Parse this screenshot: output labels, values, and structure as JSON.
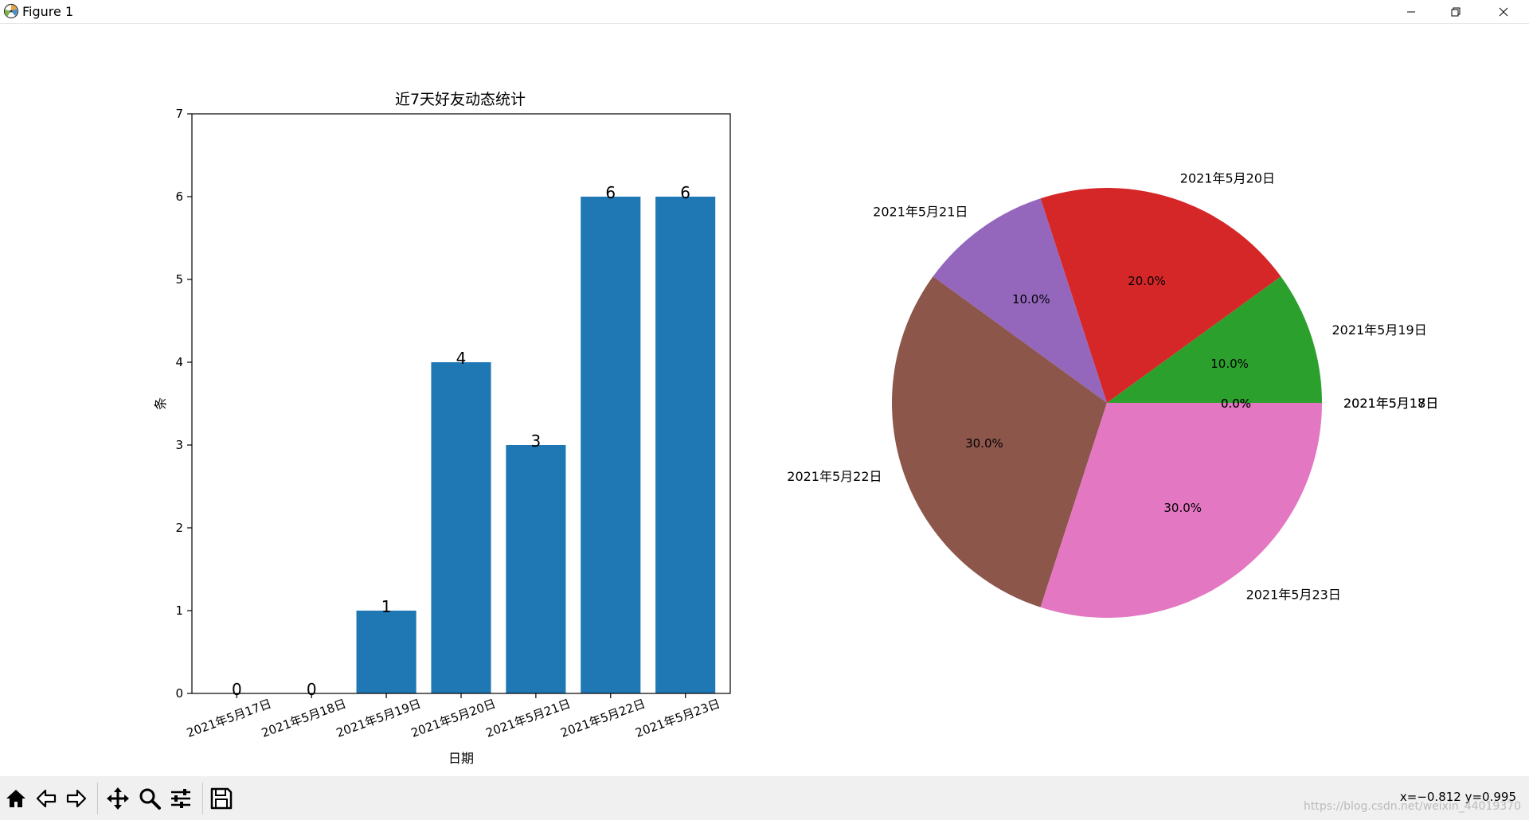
{
  "window": {
    "title": "Figure 1",
    "controls": {
      "minimize_icon": "minimize-icon",
      "maximize_icon": "restore-icon",
      "close_icon": "close-icon"
    }
  },
  "toolbar": {
    "buttons": [
      {
        "name": "home",
        "icon": "home-icon"
      },
      {
        "name": "back",
        "icon": "arrow-left-icon"
      },
      {
        "name": "forward",
        "icon": "arrow-right-icon"
      },
      {
        "name": "pan",
        "icon": "move-icon"
      },
      {
        "name": "zoom",
        "icon": "magnifier-icon"
      },
      {
        "name": "configure",
        "icon": "sliders-icon"
      },
      {
        "name": "save",
        "icon": "floppy-disk-icon"
      }
    ],
    "coordinates": "x=−0.812 y=0.995",
    "watermark": "https://blog.csdn.net/weixin_44019370"
  },
  "chart_data": [
    {
      "type": "bar",
      "title": "近7天好友动态统计",
      "xlabel": "日期",
      "ylabel": "条",
      "categories": [
        "2021年5月17日",
        "2021年5月18日",
        "2021年5月19日",
        "2021年5月20日",
        "2021年5月21日",
        "2021年5月22日",
        "2021年5月23日"
      ],
      "values": [
        0,
        0,
        1,
        4,
        3,
        6,
        6
      ],
      "data_labels": [
        "0",
        "0",
        "1",
        "4",
        "3",
        "6",
        "6"
      ],
      "ylim": [
        0,
        7
      ],
      "yticks": [
        "0",
        "1",
        "2",
        "3",
        "4",
        "5",
        "6",
        "7"
      ],
      "color": "#1f77b4",
      "grid": false
    },
    {
      "type": "pie",
      "labels": [
        "2021年5月17日",
        "2021年5月18日",
        "2021年5月19日",
        "2021年5月20日",
        "2021年5月21日",
        "2021年5月22日",
        "2021年5月23日"
      ],
      "values": [
        0,
        0,
        1,
        2,
        1,
        3,
        3
      ],
      "percent_labels": [
        "0.0%",
        "0.0%",
        "10.0%",
        "20.0%",
        "10.0%",
        "30.0%",
        "30.0%"
      ],
      "colors": [
        "#1f77b4",
        "#ff7f0e",
        "#2ca02c",
        "#d62728",
        "#9467bd",
        "#8c564b",
        "#e377c2"
      ]
    }
  ]
}
